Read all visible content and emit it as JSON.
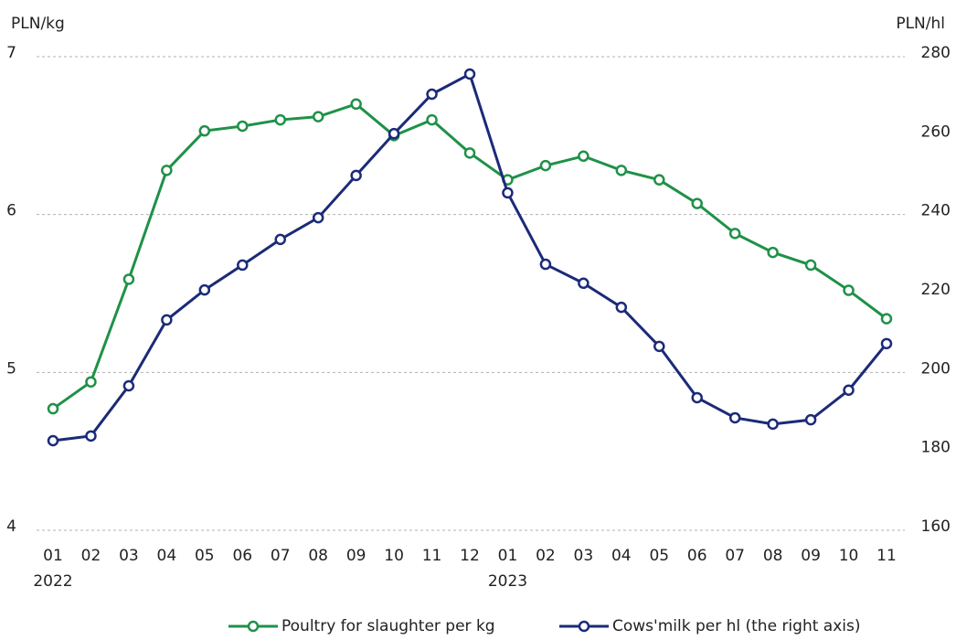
{
  "chart_data": {
    "type": "line",
    "y_label": "PLN/kg",
    "y2_label": "PLN/hl",
    "categories": [
      "01",
      "02",
      "03",
      "04",
      "05",
      "06",
      "07",
      "08",
      "09",
      "10",
      "11",
      "12",
      "01",
      "02",
      "03",
      "04",
      "05",
      "06",
      "07",
      "08",
      "09",
      "10",
      "11"
    ],
    "year_labels": [
      "2022",
      null,
      null,
      null,
      null,
      null,
      null,
      null,
      null,
      null,
      null,
      null,
      "2023",
      null,
      null,
      null,
      null,
      null,
      null,
      null,
      null,
      null,
      null
    ],
    "ylim": [
      4,
      7
    ],
    "yticks": [
      4,
      5,
      6,
      7
    ],
    "y2lim": [
      160,
      280
    ],
    "y2ticks": [
      160,
      180,
      200,
      220,
      240,
      260,
      280
    ],
    "grid": true,
    "legend": "bottom",
    "series": [
      {
        "name": "Poultry for slaughter per kg",
        "color": "#1f9148",
        "axis": "y",
        "values": [
          4.77,
          4.94,
          5.59,
          6.28,
          6.53,
          6.56,
          6.6,
          6.62,
          6.7,
          6.5,
          6.6,
          6.39,
          6.22,
          6.31,
          6.37,
          6.28,
          6.22,
          6.07,
          5.88,
          5.76,
          5.68,
          5.52,
          5.34
        ]
      },
      {
        "name": "Cows'milk per hl (the right axis)",
        "color": "#1b2a78",
        "axis": "y2",
        "values": [
          182.7,
          183.9,
          196.6,
          213.3,
          220.9,
          227.2,
          233.7,
          239.2,
          249.9,
          260.5,
          270.5,
          275.6,
          245.5,
          227.4,
          222.6,
          216.5,
          206.6,
          193.6,
          188.5,
          186.9,
          188.0,
          195.5,
          207.3
        ]
      }
    ]
  }
}
